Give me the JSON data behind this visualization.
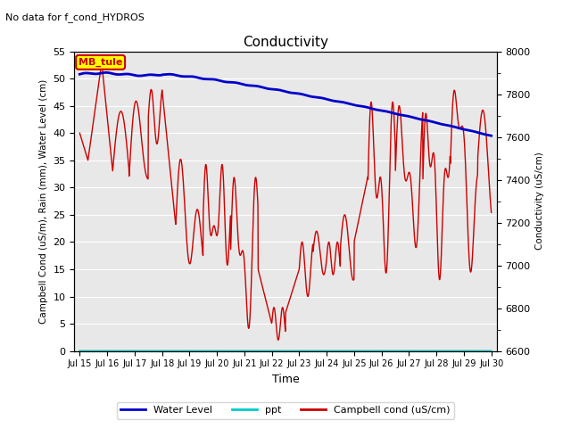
{
  "title": "Conductivity",
  "subtitle": "No data for f_cond_HYDROS",
  "xlabel": "Time",
  "ylabel_left": "Campbell Cond (uS/m), Rain (mm), Water Level (cm)",
  "ylabel_right": "Conductivity (uS/cm)",
  "ylim_left": [
    0,
    55
  ],
  "ylim_right": [
    6600,
    8000
  ],
  "yticks_left": [
    0,
    5,
    10,
    15,
    20,
    25,
    30,
    35,
    40,
    45,
    50,
    55
  ],
  "yticks_right_labeled": [
    6600,
    6800,
    7000,
    7200,
    7400,
    7600,
    7800,
    8000
  ],
  "yticks_right_minor": [
    6700,
    6900,
    7100,
    7300,
    7500,
    7700,
    7900
  ],
  "xtick_labels": [
    "Jul 15",
    "Jul 16",
    "Jul 17",
    "Jul 18",
    "Jul 19",
    "Jul 20",
    "Jul 21",
    "Jul 22",
    "Jul 23",
    "Jul 24",
    "Jul 25",
    "Jul 26",
    "Jul 27",
    "Jul 28",
    "Jul 29",
    "Jul 30"
  ],
  "annotation_box_label": "MB_tule",
  "annotation_box_color": "#ffff00",
  "annotation_box_border_color": "#cc0000",
  "annotation_text_color": "#cc0000",
  "water_level_color": "#0000cc",
  "ppt_color": "#00cccc",
  "campbell_cond_color": "#cc0000",
  "background_color": "#e8e8e8",
  "legend_labels": [
    "Water Level",
    "ppt",
    "Campbell cond (uS/cm)"
  ],
  "legend_colors": [
    "#0000cc",
    "#00cccc",
    "#cc0000"
  ],
  "figsize": [
    6.4,
    4.8
  ],
  "dpi": 100
}
